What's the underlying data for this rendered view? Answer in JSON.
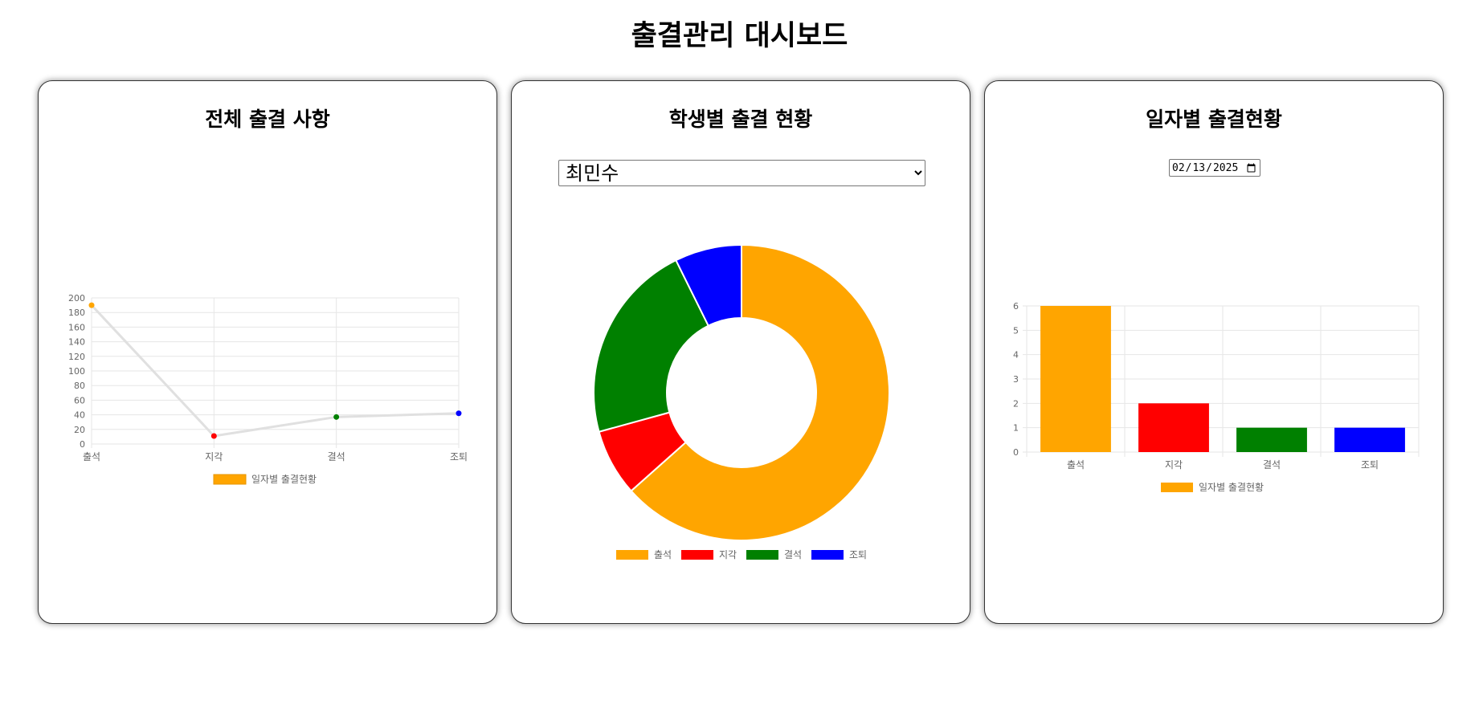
{
  "page": {
    "title": "출결관리 대시보드"
  },
  "panels": {
    "overall": {
      "title": "전체 출결 사항"
    },
    "student": {
      "title": "학생별 출결 현황",
      "selected_student": "최민수"
    },
    "daily": {
      "title": "일자별 출결현황",
      "date": "2025-02-13"
    }
  },
  "colors": {
    "출석": "#ffa500",
    "지각": "#ff0000",
    "결석": "#008000",
    "조퇴": "#0000ff",
    "line": "#e0e0e0",
    "grid": "#e6e6e6"
  },
  "chart_data": [
    {
      "type": "line",
      "title": "전체 출결 사항",
      "categories": [
        "출석",
        "지각",
        "결석",
        "조퇴"
      ],
      "series": [
        {
          "name": "일자별 출결현황",
          "values": [
            190,
            11,
            37,
            42
          ]
        }
      ],
      "ylim": [
        0,
        200
      ],
      "yticks": [
        0,
        20,
        40,
        60,
        80,
        100,
        120,
        140,
        160,
        180,
        200
      ],
      "grid": true,
      "legend": "bottom"
    },
    {
      "type": "pie",
      "title": "학생별 출결 현황",
      "categories": [
        "출석",
        "지각",
        "결석",
        "조퇴"
      ],
      "values": [
        26,
        3,
        9,
        3
      ],
      "legend": "bottom"
    },
    {
      "type": "bar",
      "title": "일자별 출결현황",
      "categories": [
        "출석",
        "지각",
        "결석",
        "조퇴"
      ],
      "series": [
        {
          "name": "일자별 출결현황",
          "values": [
            6,
            2,
            1,
            1
          ]
        }
      ],
      "ylim": [
        0,
        6
      ],
      "yticks": [
        0,
        1,
        2,
        3,
        4,
        5,
        6
      ],
      "grid": true,
      "legend": "bottom"
    }
  ]
}
